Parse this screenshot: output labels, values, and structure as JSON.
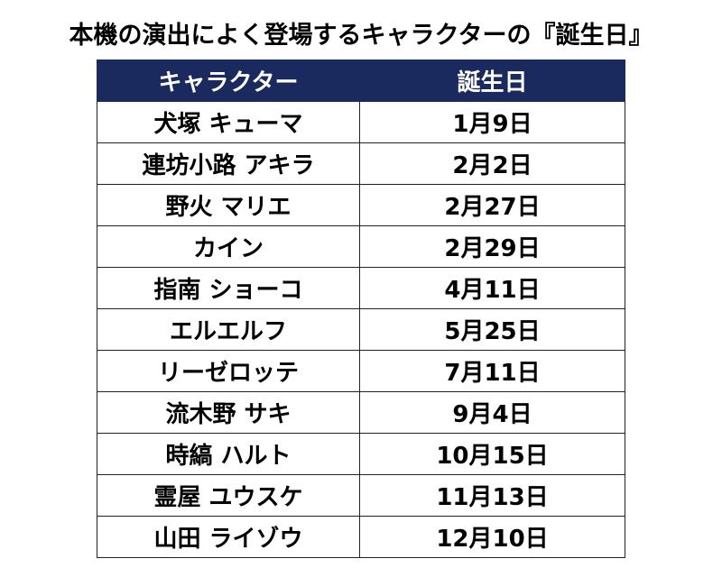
{
  "title": "本機の演出によく登場するキャラクターの『誕生日』",
  "colors": {
    "header_background": "#1a2a5e",
    "header_text": "#ffffff",
    "border": "#222222"
  },
  "table": {
    "headers": [
      "キャラクター",
      "誕生日"
    ],
    "rows": [
      [
        "犬塚 キューマ",
        "1月9日"
      ],
      [
        "連坊小路 アキラ",
        "2月2日"
      ],
      [
        "野火 マリエ",
        "2月27日"
      ],
      [
        "カイン",
        "2月29日"
      ],
      [
        "指南 ショーコ",
        "4月11日"
      ],
      [
        "エルエルフ",
        "5月25日"
      ],
      [
        "リーゼロッテ",
        "7月11日"
      ],
      [
        "流木野 サキ",
        "9月4日"
      ],
      [
        "時縞 ハルト",
        "10月15日"
      ],
      [
        "霊屋 ユウスケ",
        "11月13日"
      ],
      [
        "山田 ライゾウ",
        "12月10日"
      ]
    ]
  }
}
